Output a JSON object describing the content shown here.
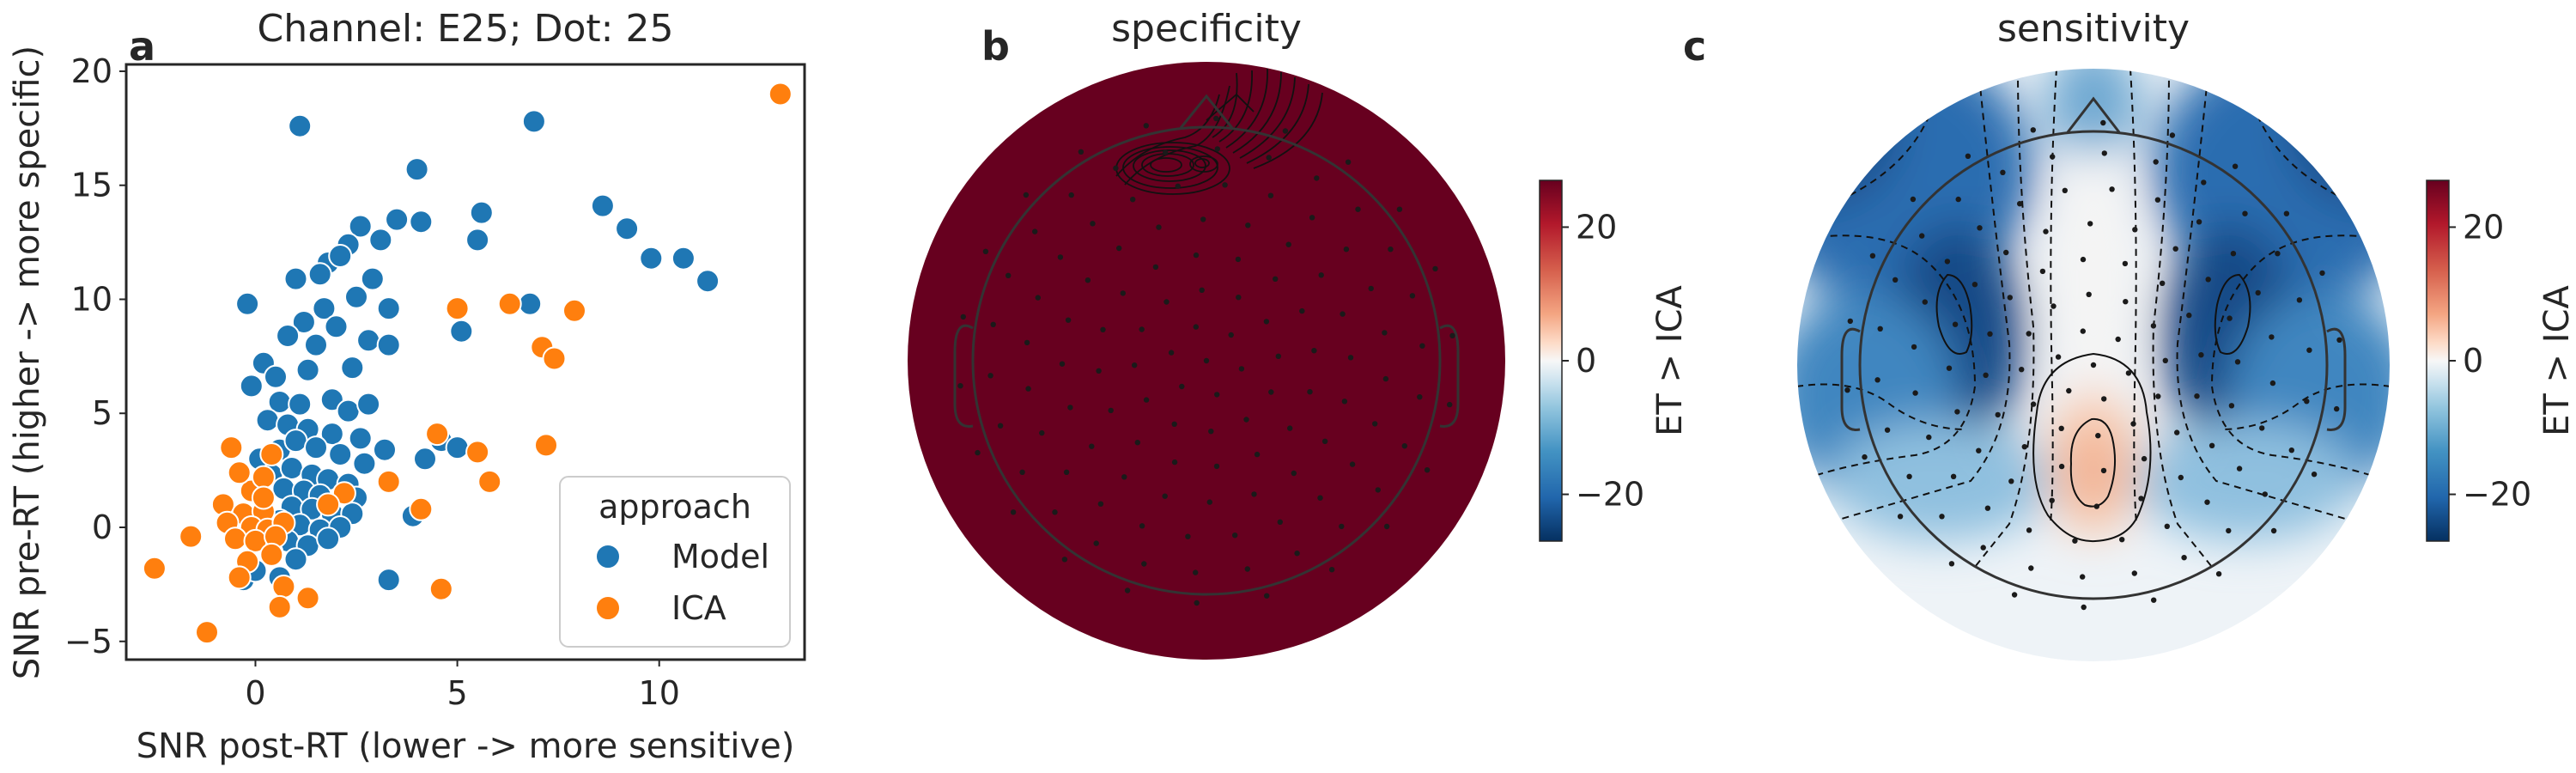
{
  "panels": {
    "a": {
      "letter": "a",
      "title": "Channel: E25; Dot: 25"
    },
    "b": {
      "letter": "b",
      "title": "specificity"
    },
    "c": {
      "letter": "c",
      "title": "sensitivity"
    }
  },
  "colors": {
    "model": "#1f77b4",
    "ica": "#ff7f0e",
    "specificity_fill": "#67001f",
    "sensor_dot": "#1a1a1a"
  },
  "chart_data": [
    {
      "type": "scatter",
      "title": "Channel: E25; Dot: 25",
      "xlabel": "SNR post-RT (lower -> more sensitive)",
      "ylabel": "SNR pre-RT (higher -> more specific)",
      "xlim": [
        -3.2,
        13.6
      ],
      "ylim": [
        -5.8,
        20.3
      ],
      "xticks": [
        0,
        5,
        10
      ],
      "yticks": [
        -5,
        0,
        5,
        10,
        15,
        20
      ],
      "grid": false,
      "legend": {
        "title": "approach",
        "placement": "lower-right"
      },
      "series": [
        {
          "name": "Model",
          "color": "#1f77b4",
          "points": [
            [
              1.1,
              17.6
            ],
            [
              6.9,
              17.8
            ],
            [
              4.0,
              15.7
            ],
            [
              3.5,
              13.5
            ],
            [
              4.1,
              13.4
            ],
            [
              5.6,
              13.8
            ],
            [
              5.5,
              12.6
            ],
            [
              8.6,
              14.1
            ],
            [
              9.2,
              13.1
            ],
            [
              9.8,
              11.8
            ],
            [
              10.6,
              11.8
            ],
            [
              11.2,
              10.8
            ],
            [
              6.8,
              9.8
            ],
            [
              5.1,
              8.6
            ],
            [
              -0.2,
              9.8
            ],
            [
              2.6,
              13.2
            ],
            [
              2.3,
              12.4
            ],
            [
              3.1,
              12.6
            ],
            [
              1.8,
              11.6
            ],
            [
              1.6,
              11.1
            ],
            [
              1.0,
              10.9
            ],
            [
              2.1,
              11.9
            ],
            [
              2.9,
              10.9
            ],
            [
              2.5,
              10.1
            ],
            [
              3.3,
              9.6
            ],
            [
              1.7,
              9.6
            ],
            [
              1.2,
              9.0
            ],
            [
              0.8,
              8.4
            ],
            [
              2.0,
              8.8
            ],
            [
              2.8,
              8.2
            ],
            [
              3.3,
              8.0
            ],
            [
              1.5,
              8.0
            ],
            [
              0.2,
              7.2
            ],
            [
              0.5,
              6.6
            ],
            [
              1.3,
              6.9
            ],
            [
              2.4,
              7.0
            ],
            [
              -0.1,
              6.2
            ],
            [
              0.6,
              5.5
            ],
            [
              1.1,
              5.4
            ],
            [
              1.9,
              5.6
            ],
            [
              2.3,
              5.1
            ],
            [
              2.8,
              5.4
            ],
            [
              0.3,
              4.7
            ],
            [
              0.8,
              4.5
            ],
            [
              1.3,
              4.3
            ],
            [
              1.9,
              4.1
            ],
            [
              2.6,
              3.9
            ],
            [
              3.2,
              3.4
            ],
            [
              4.6,
              3.8
            ],
            [
              5.0,
              3.5
            ],
            [
              4.2,
              3.0
            ],
            [
              0.1,
              3.0
            ],
            [
              0.6,
              3.4
            ],
            [
              1.0,
              3.8
            ],
            [
              1.5,
              3.5
            ],
            [
              2.1,
              3.2
            ],
            [
              2.7,
              2.8
            ],
            [
              0.4,
              2.3
            ],
            [
              0.9,
              2.6
            ],
            [
              1.4,
              2.3
            ],
            [
              1.8,
              2.1
            ],
            [
              2.3,
              1.9
            ],
            [
              0.7,
              1.7
            ],
            [
              1.2,
              1.6
            ],
            [
              1.6,
              1.4
            ],
            [
              2.5,
              1.3
            ],
            [
              0.9,
              0.9
            ],
            [
              1.4,
              0.8
            ],
            [
              1.9,
              0.6
            ],
            [
              2.4,
              0.6
            ],
            [
              3.9,
              0.5
            ],
            [
              0.6,
              0.3
            ],
            [
              1.1,
              0.1
            ],
            [
              1.6,
              -0.1
            ],
            [
              2.1,
              0.0
            ],
            [
              0.8,
              -0.6
            ],
            [
              1.3,
              -0.8
            ],
            [
              1.8,
              -0.5
            ],
            [
              0.4,
              -1.1
            ],
            [
              1.0,
              -1.4
            ],
            [
              -0.3,
              -2.3
            ],
            [
              0.6,
              -2.2
            ],
            [
              3.3,
              -2.3
            ],
            [
              0.0,
              -1.9
            ]
          ]
        },
        {
          "name": "ICA",
          "color": "#ff7f0e",
          "points": [
            [
              13.0,
              19.0
            ],
            [
              5.0,
              9.6
            ],
            [
              6.3,
              9.8
            ],
            [
              7.9,
              9.5
            ],
            [
              7.1,
              7.9
            ],
            [
              7.4,
              7.4
            ],
            [
              4.5,
              4.1
            ],
            [
              5.5,
              3.3
            ],
            [
              7.2,
              3.6
            ],
            [
              5.8,
              2.0
            ],
            [
              3.3,
              2.0
            ],
            [
              4.1,
              0.8
            ],
            [
              4.6,
              -2.7
            ],
            [
              -0.6,
              3.5
            ],
            [
              0.4,
              3.2
            ],
            [
              -0.8,
              1.0
            ],
            [
              -0.3,
              0.6
            ],
            [
              0.2,
              0.7
            ],
            [
              -0.7,
              0.2
            ],
            [
              -0.1,
              0.0
            ],
            [
              0.3,
              -0.1
            ],
            [
              0.7,
              0.2
            ],
            [
              -0.5,
              -0.5
            ],
            [
              0.0,
              -0.6
            ],
            [
              0.5,
              -0.4
            ],
            [
              -1.6,
              -0.4
            ],
            [
              -2.5,
              -1.8
            ],
            [
              -0.2,
              -1.5
            ],
            [
              0.4,
              -1.2
            ],
            [
              -0.4,
              -2.2
            ],
            [
              0.7,
              -2.6
            ],
            [
              0.6,
              -3.5
            ],
            [
              1.3,
              -3.1
            ],
            [
              -1.2,
              -4.6
            ],
            [
              -0.1,
              1.6
            ],
            [
              0.2,
              2.2
            ],
            [
              2.2,
              1.5
            ],
            [
              1.8,
              1.0
            ],
            [
              0.2,
              1.3
            ],
            [
              -0.4,
              2.4
            ]
          ]
        }
      ]
    },
    {
      "type": "heatmap",
      "title": "specificity",
      "colorbar_label": "ET > ICA",
      "colorbar_ticks": [
        20,
        0,
        -20
      ],
      "colorbar_range": [
        -27,
        27
      ],
      "colormap": "RdBu_r"
    },
    {
      "type": "heatmap",
      "title": "sensitivity",
      "colorbar_label": "ET > ICA",
      "colorbar_ticks": [
        20,
        0,
        -20
      ],
      "colorbar_range": [
        -27,
        27
      ],
      "colormap": "RdBu_r"
    }
  ]
}
